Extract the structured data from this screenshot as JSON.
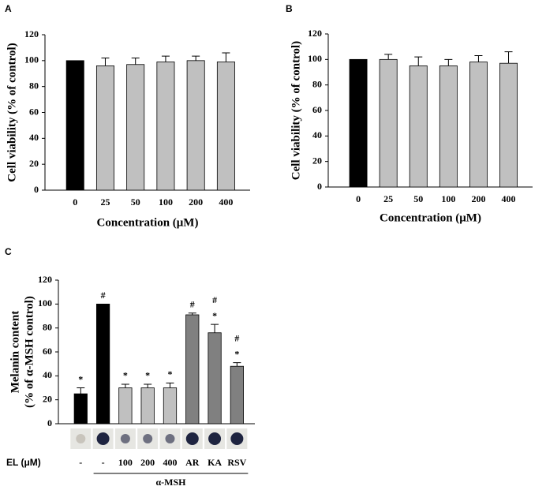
{
  "chart_data": [
    {
      "type": "bar",
      "panel": "A",
      "ylabel": "Cell viability (% of control)",
      "xlabel": "Concentration (μM)",
      "categories": [
        "0",
        "25",
        "50",
        "100",
        "200",
        "400"
      ],
      "values": [
        100,
        96,
        97,
        99,
        100,
        99
      ],
      "errors": [
        0,
        6,
        5,
        4.5,
        3.5,
        7
      ],
      "colors": [
        "#000000",
        "#c0c0c0",
        "#c0c0c0",
        "#c0c0c0",
        "#c0c0c0",
        "#c0c0c0"
      ],
      "ylim": [
        0,
        120
      ],
      "yticks": [
        0,
        20,
        40,
        60,
        80,
        100,
        120
      ]
    },
    {
      "type": "bar",
      "panel": "B",
      "ylabel": "Cell viability (% of control)",
      "xlabel": "Concentration (μM)",
      "categories": [
        "0",
        "25",
        "50",
        "100",
        "200",
        "400"
      ],
      "values": [
        100,
        100,
        95,
        95,
        98,
        97
      ],
      "errors": [
        0,
        4,
        7,
        5,
        5,
        9
      ],
      "colors": [
        "#000000",
        "#c0c0c0",
        "#c0c0c0",
        "#c0c0c0",
        "#c0c0c0",
        "#c0c0c0"
      ],
      "ylim": [
        0,
        120
      ],
      "yticks": [
        0,
        20,
        40,
        60,
        80,
        100,
        120
      ]
    },
    {
      "type": "bar",
      "panel": "C",
      "ylabel": [
        "Melanin content",
        "(% of α-MSH control)"
      ],
      "row_label": "EL (μM)",
      "group_label": "α-MSH",
      "categories": [
        "-",
        "-",
        "100",
        "200",
        "400",
        "AR",
        "KA",
        "RSV"
      ],
      "values": [
        25,
        100,
        30,
        30,
        30,
        91,
        76,
        48
      ],
      "errors": [
        5,
        0,
        3,
        3,
        4,
        1.5,
        7,
        3
      ],
      "colors": [
        "#000000",
        "#000000",
        "#c0c0c0",
        "#c0c0c0",
        "#c0c0c0",
        "#808080",
        "#808080",
        "#808080"
      ],
      "markers": [
        [
          "*"
        ],
        [
          "#"
        ],
        [
          "*"
        ],
        [
          "*"
        ],
        [
          "*"
        ],
        [
          "#"
        ],
        [
          "#",
          "*"
        ],
        [
          "#",
          "*"
        ]
      ],
      "ylim": [
        0,
        120
      ],
      "yticks": [
        0,
        20,
        40,
        60,
        80,
        100,
        120
      ]
    }
  ]
}
